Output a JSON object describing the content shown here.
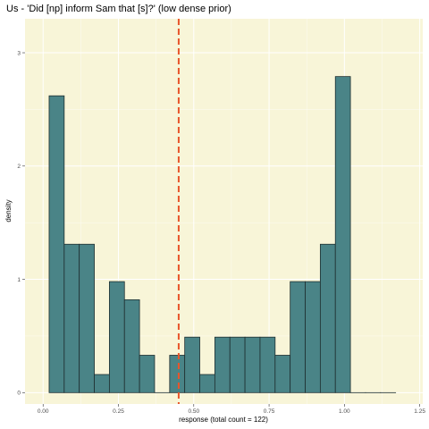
{
  "chart_data": {
    "type": "bar",
    "title": "Us - 'Did [np] inform Sam that [s]?' (low dense prior)",
    "xlabel": "response (total count = 122)",
    "ylabel": "density",
    "xlim": [
      -0.06,
      1.26
    ],
    "ylim": [
      -0.1,
      3.3
    ],
    "x_ticks": [
      0.0,
      0.25,
      0.5,
      0.75,
      1.0,
      1.25
    ],
    "x_tick_labels": [
      "0.00",
      "0.25",
      "0.50",
      "0.75",
      "1.00",
      "1.25"
    ],
    "y_ticks": [
      0,
      1,
      2,
      3
    ],
    "y_tick_labels": [
      "0",
      "1",
      "2",
      "3"
    ],
    "bin_width": 0.05,
    "bin_starts": [
      0.02,
      0.07,
      0.12,
      0.17,
      0.22,
      0.27,
      0.32,
      0.37,
      0.42,
      0.47,
      0.52,
      0.57,
      0.62,
      0.67,
      0.72,
      0.77,
      0.82,
      0.87,
      0.92,
      0.97,
      1.02,
      1.07,
      1.12
    ],
    "values": [
      2.62,
      1.31,
      1.31,
      0.16,
      0.98,
      0.82,
      0.33,
      0.0,
      0.33,
      0.49,
      0.16,
      0.49,
      0.49,
      0.49,
      0.49,
      0.33,
      0.98,
      0.98,
      1.31,
      2.79,
      0.0,
      0.0,
      0.0
    ],
    "mean_line_x": 0.45,
    "grid": true,
    "colors": {
      "panel_background": "#f8f5d8",
      "grid_major": "#ffffff",
      "bar_fill": "#4a8487",
      "bar_stroke": "#1f2f30",
      "mean_line": "#e8552a"
    }
  }
}
